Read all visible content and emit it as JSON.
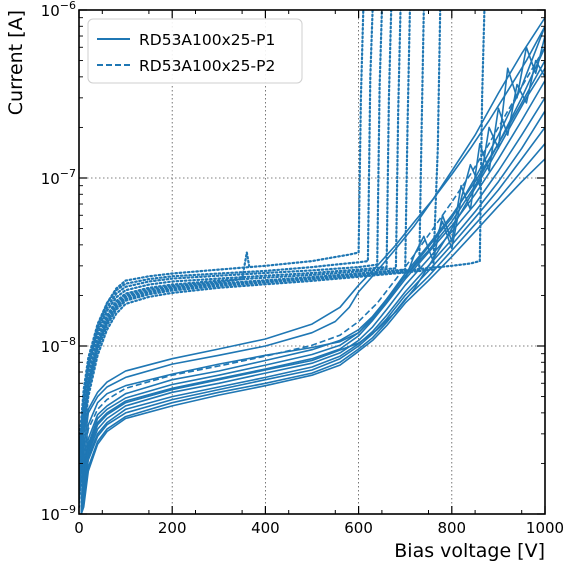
{
  "chart_data": {
    "type": "line",
    "title": "",
    "xlabel": "Bias voltage [V]",
    "ylabel": "Current [A]",
    "xlim": [
      0,
      1000
    ],
    "ylim": [
      1e-09,
      1e-06
    ],
    "yscale": "log",
    "grid": true,
    "grid_style": "dotted",
    "legend_placement": "top-left",
    "line_color": "#1f77b4",
    "x_ticks": [
      0,
      200,
      400,
      600,
      800,
      1000
    ],
    "x_tick_labels": [
      "0",
      "200",
      "400",
      "600",
      "800",
      "1000"
    ],
    "y_ticks": [
      1e-09,
      1e-08,
      1e-07,
      1e-06
    ],
    "y_tick_labels": [
      {
        "base": "10",
        "exp": "−9"
      },
      {
        "base": "10",
        "exp": "−8"
      },
      {
        "base": "10",
        "exp": "−7"
      },
      {
        "base": "10",
        "exp": "−6"
      }
    ],
    "legend": [
      {
        "label": "RD53A100x25-P1",
        "style": "solid"
      },
      {
        "label": "RD53A100x25-P2",
        "style": "dashed"
      }
    ],
    "series": [
      {
        "style": "solid",
        "x": [
          5,
          10,
          20,
          40,
          60,
          100,
          200,
          300,
          400,
          500,
          560,
          600,
          630,
          660,
          700,
          750,
          800,
          850,
          900,
          950,
          1000
        ],
        "y": [
          1e-09,
          1.8e-09,
          2.8e-09,
          3.9e-09,
          4.4e-09,
          5.2e-09,
          6.3e-09,
          7.1e-09,
          8.2e-09,
          9.5e-09,
          1.08e-08,
          1.25e-08,
          1.5e-08,
          1.9e-08,
          2.6e-08,
          3.7e-08,
          5.5e-08,
          9e-08,
          1.6e-07,
          3e-07,
          6e-07
        ]
      },
      {
        "style": "solid",
        "x": [
          5,
          10,
          20,
          40,
          60,
          100,
          200,
          300,
          400,
          500,
          560,
          600,
          630,
          660,
          700,
          750,
          800,
          850,
          900,
          950,
          1000
        ],
        "y": [
          1e-09,
          1.7e-09,
          2.6e-09,
          3.7e-09,
          4.2e-09,
          4.9e-09,
          5.9e-09,
          6.7e-09,
          7.7e-09,
          8.9e-09,
          1.01e-08,
          1.2e-08,
          1.48e-08,
          1.9e-08,
          2.7e-08,
          4e-08,
          6e-08,
          9.5e-08,
          1.6e-07,
          2.8e-07,
          5e-07
        ]
      },
      {
        "style": "solid",
        "x": [
          5,
          10,
          20,
          40,
          60,
          100,
          200,
          300,
          400,
          500,
          560,
          600,
          630,
          660,
          700,
          750,
          800,
          850,
          900,
          950,
          1000
        ],
        "y": [
          1e-09,
          1.6e-09,
          2.5e-09,
          3.5e-09,
          4e-09,
          4.7e-09,
          5.6e-09,
          6.4e-09,
          7.3e-09,
          8.4e-09,
          9.6e-09,
          1.15e-08,
          1.42e-08,
          1.8e-08,
          2.5e-08,
          3.6e-08,
          5.2e-08,
          8e-08,
          1.3e-07,
          2.2e-07,
          3.8e-07
        ]
      },
      {
        "style": "solid",
        "x": [
          5,
          10,
          20,
          40,
          60,
          100,
          200,
          300,
          400,
          500,
          560,
          600,
          630,
          660,
          700,
          750,
          800,
          850,
          900,
          950,
          1000
        ],
        "y": [
          1e-09,
          1.5e-09,
          2.3e-09,
          3.2e-09,
          3.7e-09,
          4.4e-09,
          5.3e-09,
          6e-09,
          6.9e-09,
          7.9e-09,
          9.1e-09,
          1.08e-08,
          1.3e-08,
          1.65e-08,
          2.3e-08,
          3.3e-08,
          4.8e-08,
          7e-08,
          1.1e-07,
          1.8e-07,
          3e-07
        ]
      },
      {
        "style": "solid",
        "x": [
          5,
          10,
          20,
          40,
          60,
          100,
          200,
          300,
          400,
          500,
          560,
          600,
          630,
          660,
          700,
          750,
          800,
          850,
          900,
          950,
          1000
        ],
        "y": [
          1e-09,
          1.4e-09,
          2.2e-09,
          3e-09,
          3.5e-09,
          4.2e-09,
          5e-09,
          5.7e-09,
          6.5e-09,
          7.5e-09,
          8.7e-09,
          1.03e-08,
          1.22e-08,
          1.52e-08,
          2.1e-08,
          3e-08,
          4.3e-08,
          6.3e-08,
          9.5e-08,
          1.5e-07,
          2.5e-07
        ]
      },
      {
        "style": "solid",
        "x": [
          5,
          10,
          20,
          40,
          60,
          100,
          200,
          300,
          400,
          500,
          560,
          600,
          630,
          660,
          700,
          750,
          800,
          850,
          900,
          950,
          1000
        ],
        "y": [
          1e-09,
          1.3e-09,
          2.1e-09,
          2.9e-09,
          3.4e-09,
          4e-09,
          4.8e-09,
          5.5e-09,
          6.3e-09,
          7.2e-09,
          8.4e-09,
          1e-08,
          1.18e-08,
          1.45e-08,
          2e-08,
          2.8e-08,
          4e-08,
          5.8e-08,
          8.5e-08,
          1.3e-07,
          2e-07
        ]
      },
      {
        "style": "solid",
        "x": [
          5,
          10,
          20,
          40,
          60,
          100,
          200,
          300,
          400,
          500,
          560,
          600,
          630,
          660,
          700,
          750,
          800,
          850,
          900,
          950,
          1000
        ],
        "y": [
          1e-09,
          1.2e-09,
          1.9e-09,
          2.7e-09,
          3.2e-09,
          3.8e-09,
          4.6e-09,
          5.3e-09,
          6e-09,
          6.9e-09,
          8e-09,
          9.6e-09,
          1.12e-08,
          1.38e-08,
          1.9e-08,
          2.6e-08,
          3.7e-08,
          5.3e-08,
          7.5e-08,
          1.1e-07,
          1.6e-07
        ]
      },
      {
        "style": "solid",
        "x": [
          5,
          10,
          20,
          40,
          60,
          100,
          200,
          300,
          400,
          500,
          560,
          600,
          630,
          660,
          700,
          750,
          800,
          850,
          900,
          950,
          1000
        ],
        "y": [
          1e-09,
          1.1e-09,
          1.8e-09,
          2.6e-09,
          3.1e-09,
          3.7e-09,
          4.4e-09,
          5.1e-09,
          5.8e-09,
          6.7e-09,
          7.7e-09,
          9.3e-09,
          1.08e-08,
          1.32e-08,
          1.8e-08,
          2.45e-08,
          3.4e-08,
          4.8e-08,
          6.8e-08,
          9.5e-08,
          1.3e-07
        ]
      },
      {
        "style": "solid",
        "x": [
          5,
          10,
          20,
          40,
          60,
          100,
          200,
          300,
          400,
          500,
          560,
          600,
          630,
          660,
          700,
          750,
          800,
          850,
          900,
          950,
          1000
        ],
        "y": [
          1e-09,
          2e-09,
          3.4e-09,
          4.6e-09,
          5.2e-09,
          5.8e-09,
          6.8e-09,
          7.8e-09,
          8.8e-09,
          9.8e-09,
          1.06e-08,
          1.2e-08,
          1.45e-08,
          1.85e-08,
          2.6e-08,
          3.9e-08,
          5.8e-08,
          1e-07,
          1.8e-07,
          3.5e-07,
          8e-07
        ]
      },
      {
        "style": "solid",
        "x": [
          5,
          10,
          20,
          40,
          60,
          100,
          200,
          300,
          400,
          500,
          550,
          580,
          600,
          640,
          680,
          720,
          760,
          800,
          850,
          900,
          950,
          1000
        ],
        "y": [
          1e-09,
          2.4e-09,
          4e-09,
          5e-09,
          5.7e-09,
          6.5e-09,
          7.8e-09,
          8.8e-09,
          1e-08,
          1.2e-08,
          1.4e-08,
          1.7e-08,
          2.1e-08,
          2.8e-08,
          3.8e-08,
          5.2e-08,
          7.5e-08,
          1.1e-07,
          1.8e-07,
          3.2e-07,
          5.5e-07,
          9e-07
        ]
      },
      {
        "style": "solid",
        "x": [
          5,
          10,
          20,
          40,
          60,
          100,
          200,
          300,
          400,
          500,
          560,
          600,
          640,
          680,
          720,
          760,
          800,
          840,
          880,
          920,
          960,
          1000
        ],
        "y": [
          1e-09,
          3e-09,
          4.2e-09,
          5.3e-09,
          6.1e-09,
          7.1e-09,
          8.4e-09,
          9.6e-09,
          1.1e-08,
          1.35e-08,
          1.7e-08,
          2.3e-08,
          3e-08,
          4e-08,
          5.5e-08,
          7.5e-08,
          1.05e-07,
          1.5e-07,
          2.2e-07,
          3.3e-07,
          5e-07,
          8e-07
        ]
      },
      {
        "style": "solid",
        "x": [
          5,
          10,
          20,
          40,
          60,
          100,
          200,
          300,
          400,
          500,
          600,
          640,
          680,
          720,
          760,
          800,
          840,
          880,
          920,
          960,
          1000
        ],
        "y": [
          1e-09,
          1.6e-09,
          2.4e-09,
          3.4e-09,
          3.9e-09,
          4.6e-09,
          5.5e-09,
          6.3e-09,
          7.2e-09,
          8.2e-09,
          1.04e-08,
          1.25e-08,
          1.6e-08,
          2.2e-08,
          3.3e-08,
          5e-08,
          7.8e-08,
          1.2e-07,
          1.9e-07,
          3e-07,
          4.5e-07
        ]
      },
      {
        "style": "solid",
        "x": [
          700,
          720,
          740,
          760,
          780,
          800,
          820,
          840,
          860,
          880,
          900,
          920,
          940,
          960,
          980,
          1000
        ],
        "y": [
          2.5e-08,
          3.5e-08,
          4.5e-08,
          3.2e-08,
          6e-08,
          4.2e-08,
          9e-08,
          6.5e-08,
          1.6e-07,
          1.1e-07,
          2.6e-07,
          1.8e-07,
          3.6e-07,
          2.8e-07,
          5e-07,
          4e-07
        ]
      },
      {
        "style": "solid",
        "x": [
          760,
          780,
          800,
          820,
          840,
          860,
          880,
          900,
          920,
          940,
          960,
          980,
          1000
        ],
        "y": [
          4e-08,
          5.5e-08,
          3.8e-08,
          7.5e-08,
          1.2e-07,
          9e-08,
          2e-07,
          1.5e-07,
          4.5e-07,
          3e-07,
          6e-07,
          4.2e-07,
          7e-07
        ]
      },
      {
        "style": "dashed",
        "x": [
          5,
          10,
          20,
          40,
          60,
          100,
          200,
          300,
          400,
          500,
          560,
          600,
          640,
          680,
          720,
          760,
          800,
          840,
          880,
          920,
          960,
          1000
        ],
        "y": [
          1e-09,
          2.1e-09,
          3.2e-09,
          4.2e-09,
          4.8e-09,
          5.6e-09,
          6.7e-09,
          7.6e-09,
          8.7e-09,
          1.01e-08,
          1.16e-08,
          1.4e-08,
          1.8e-08,
          2.5e-08,
          3.5e-08,
          5e-08,
          7.2e-08,
          1.05e-07,
          1.6e-07,
          2.5e-07,
          3.9e-07,
          6e-07
        ]
      },
      {
        "style": "dotted",
        "x": [
          0,
          10,
          20,
          40,
          60,
          80,
          100,
          150,
          200,
          300,
          400,
          500,
          540,
          580,
          600,
          605,
          610
        ],
        "y": [
          2e-09,
          5e-09,
          8e-09,
          1.3e-08,
          1.8e-08,
          2.2e-08,
          2.45e-08,
          2.6e-08,
          2.7e-08,
          2.85e-08,
          3e-08,
          3.2e-08,
          3.35e-08,
          3.5e-08,
          3.6e-08,
          3e-07,
          1e-06
        ]
      },
      {
        "style": "dotted",
        "x": [
          0,
          10,
          20,
          40,
          60,
          80,
          100,
          150,
          200,
          300,
          400,
          500,
          550,
          600,
          620,
          625,
          630
        ],
        "y": [
          2.5e-09,
          5.5e-09,
          8.5e-09,
          1.35e-08,
          1.8e-08,
          2.15e-08,
          2.35e-08,
          2.5e-08,
          2.6e-08,
          2.7e-08,
          2.8e-08,
          2.95e-08,
          3.05e-08,
          3.15e-08,
          3.2e-08,
          4e-07,
          1e-06
        ]
      },
      {
        "style": "dotted",
        "x": [
          0,
          10,
          20,
          40,
          60,
          80,
          100,
          150,
          200,
          300,
          400,
          500,
          600,
          640,
          645,
          650
        ],
        "y": [
          2.2e-09,
          4.8e-09,
          7.6e-09,
          1.25e-08,
          1.7e-08,
          2.05e-08,
          2.25e-08,
          2.42e-08,
          2.52e-08,
          2.62e-08,
          2.72e-08,
          2.82e-08,
          2.95e-08,
          3.05e-08,
          3.5e-07,
          1e-06
        ]
      },
      {
        "style": "dotted",
        "x": [
          0,
          10,
          20,
          40,
          60,
          80,
          100,
          150,
          200,
          300,
          400,
          500,
          600,
          660,
          665,
          670
        ],
        "y": [
          1.8e-09,
          4.3e-09,
          7e-09,
          1.18e-08,
          1.62e-08,
          1.95e-08,
          2.15e-08,
          2.32e-08,
          2.42e-08,
          2.52e-08,
          2.62e-08,
          2.72e-08,
          2.85e-08,
          2.95e-08,
          3e-07,
          1e-06
        ]
      },
      {
        "style": "dotted",
        "x": [
          0,
          10,
          20,
          40,
          60,
          80,
          100,
          150,
          200,
          300,
          400,
          500,
          600,
          680,
          685,
          690
        ],
        "y": [
          1.6e-09,
          4e-09,
          6.5e-09,
          1.1e-08,
          1.52e-08,
          1.85e-08,
          2.05e-08,
          2.22e-08,
          2.32e-08,
          2.45e-08,
          2.55e-08,
          2.65e-08,
          2.78e-08,
          2.9e-08,
          2.5e-07,
          1e-06
        ]
      },
      {
        "style": "dotted",
        "x": [
          0,
          10,
          20,
          40,
          60,
          80,
          100,
          150,
          200,
          300,
          400,
          500,
          600,
          700,
          705,
          710
        ],
        "y": [
          1.4e-09,
          3.6e-09,
          6e-09,
          1.02e-08,
          1.42e-08,
          1.75e-08,
          1.95e-08,
          2.12e-08,
          2.22e-08,
          2.36e-08,
          2.46e-08,
          2.57e-08,
          2.7e-08,
          2.85e-08,
          2e-07,
          1e-06
        ]
      },
      {
        "style": "dotted",
        "x": [
          0,
          10,
          20,
          40,
          60,
          80,
          100,
          150,
          200,
          300,
          400,
          500,
          600,
          700,
          730,
          735,
          740
        ],
        "y": [
          1.2e-09,
          3.2e-09,
          5.5e-09,
          9.5e-09,
          1.33e-08,
          1.65e-08,
          1.86e-08,
          2.03e-08,
          2.14e-08,
          2.28e-08,
          2.39e-08,
          2.5e-08,
          2.63e-08,
          2.78e-08,
          2.85e-08,
          1.8e-07,
          1e-06
        ]
      },
      {
        "style": "dotted",
        "x": [
          0,
          10,
          20,
          40,
          60,
          80,
          100,
          150,
          200,
          300,
          400,
          500,
          600,
          700,
          760,
          770,
          775
        ],
        "y": [
          1.1e-09,
          2.9e-09,
          5e-09,
          8.8e-09,
          1.25e-08,
          1.56e-08,
          1.78e-08,
          1.96e-08,
          2.07e-08,
          2.22e-08,
          2.33e-08,
          2.44e-08,
          2.58e-08,
          2.74e-08,
          2.85e-08,
          1.5e-07,
          1e-06
        ]
      },
      {
        "style": "dotted",
        "x": [
          0,
          10,
          20,
          40,
          60,
          80,
          100,
          150,
          200,
          300,
          400,
          500,
          600,
          700,
          800,
          840,
          860,
          865,
          870
        ],
        "y": [
          1.3e-09,
          3.4e-09,
          5.8e-09,
          1e-08,
          1.38e-08,
          1.7e-08,
          1.9e-08,
          2.08e-08,
          2.18e-08,
          2.32e-08,
          2.42e-08,
          2.53e-08,
          2.66e-08,
          2.82e-08,
          3e-08,
          3.1e-08,
          3.2e-08,
          3e-07,
          1e-06
        ]
      },
      {
        "style": "dotted",
        "x": [
          0,
          10,
          20,
          40,
          60,
          80,
          100,
          150,
          200,
          300,
          350,
          360,
          365
        ],
        "y": [
          1.5e-09,
          3.8e-09,
          6.2e-09,
          1.06e-08,
          1.48e-08,
          1.8e-08,
          2e-08,
          2.17e-08,
          2.27e-08,
          2.4e-08,
          2.5e-08,
          3.6e-08,
          3e-08
        ]
      }
    ]
  }
}
